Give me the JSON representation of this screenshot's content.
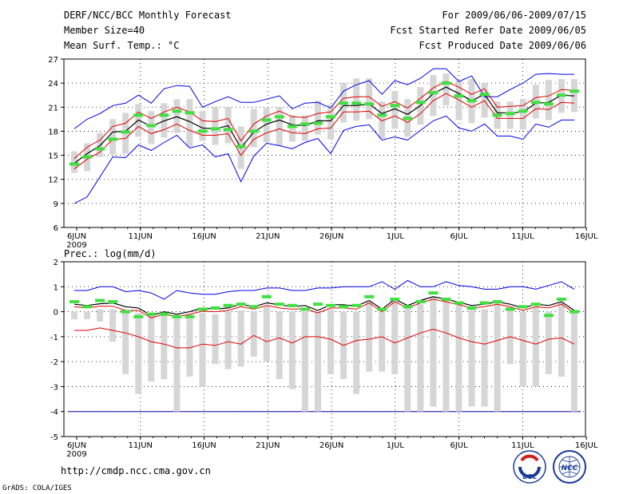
{
  "header": {
    "title": "DERF/NCC/BCC Monthly Forecast",
    "member_size": "Member Size=40",
    "variable": "Mean Surf. Temp.: °C",
    "period": "For 2009/06/06-2009/07/15",
    "started": "Fcst Started Refer Date 2009/06/05",
    "produced": "Fcst Produced Date 2009/06/06"
  },
  "footer": {
    "url": "http://cmdp.ncc.cma.gov.cn",
    "grads": "GrADS: COLA/IGES",
    "logo_bcc": "BCC",
    "logo_ncc": "NCC"
  },
  "colors": {
    "box": "#d6d6d6",
    "mean": "#000000",
    "band": "#e00000",
    "envelope": "#0000ee",
    "median": "#40e040",
    "grid": "#000000",
    "floor": "#0000aa"
  },
  "chart_data": [
    {
      "type": "line",
      "title": "Mean Surf. Temp.: °C",
      "x_tick_labels": [
        "6JUN",
        "11JUN",
        "16JUN",
        "21JUN",
        "26JUN",
        "1JUL",
        "6JUL",
        "11JUL",
        "16JUL"
      ],
      "x_sub_label": "2009",
      "ylim": [
        6,
        27
      ],
      "y_ticks": [
        6,
        9,
        12,
        15,
        18,
        21,
        24,
        27
      ],
      "grid": true,
      "series": {
        "mean": [
          14.0,
          15.2,
          16.2,
          17.9,
          18.0,
          19.4,
          18.6,
          19.3,
          19.8,
          19.2,
          18.4,
          18.3,
          18.7,
          15.9,
          17.9,
          18.9,
          19.4,
          18.8,
          18.7,
          19.3,
          19.3,
          21.2,
          21.2,
          21.4,
          20.2,
          20.8,
          20.1,
          21.2,
          22.7,
          23.5,
          22.7,
          21.8,
          22.6,
          20.3,
          20.3,
          20.4,
          21.5,
          21.6,
          22.5,
          22.4
        ],
        "upper": [
          14.6,
          16.0,
          16.9,
          18.6,
          19.0,
          20.4,
          19.6,
          20.4,
          21.0,
          20.4,
          19.3,
          19.2,
          19.6,
          16.8,
          18.9,
          19.9,
          20.5,
          19.8,
          19.7,
          20.2,
          20.4,
          22.1,
          22.3,
          22.3,
          21.1,
          21.7,
          20.9,
          22.1,
          23.4,
          24.2,
          23.5,
          22.6,
          23.3,
          21.0,
          21.1,
          21.2,
          22.2,
          22.4,
          23.2,
          23.1
        ],
        "lower": [
          13.3,
          14.5,
          15.4,
          17.0,
          17.1,
          18.6,
          17.7,
          18.2,
          18.9,
          18.1,
          17.5,
          17.5,
          17.7,
          15.0,
          17.0,
          17.8,
          18.3,
          17.8,
          17.7,
          18.3,
          18.4,
          20.4,
          20.4,
          20.5,
          19.3,
          19.9,
          19.1,
          20.2,
          21.8,
          22.7,
          21.9,
          21.0,
          21.8,
          19.6,
          19.6,
          19.6,
          20.8,
          20.7,
          21.6,
          21.5
        ],
        "env_max": [
          18.3,
          19.5,
          20.2,
          21.2,
          21.5,
          22.5,
          21.5,
          23.3,
          23.7,
          23.6,
          21.0,
          21.7,
          22.3,
          21.6,
          21.6,
          22.0,
          22.4,
          20.8,
          21.5,
          21.6,
          20.9,
          23.0,
          23.8,
          24.3,
          22.6,
          24.3,
          23.8,
          24.6,
          25.8,
          25.8,
          24.2,
          24.9,
          22.3,
          22.3,
          23.2,
          24.0,
          25.1,
          25.2,
          25.1,
          25.1
        ],
        "env_min": [
          9.0,
          9.8,
          12.3,
          14.8,
          14.7,
          16.3,
          15.6,
          16.6,
          17.5,
          15.9,
          16.3,
          14.8,
          15.2,
          11.7,
          14.9,
          16.5,
          16.2,
          15.8,
          16.6,
          17.1,
          15.2,
          18.1,
          18.6,
          18.8,
          16.9,
          17.3,
          16.9,
          18.1,
          19.3,
          19.9,
          18.4,
          18.0,
          18.9,
          17.4,
          17.4,
          17.0,
          18.9,
          18.5,
          19.4,
          19.4
        ],
        "median": [
          13.9,
          14.8,
          15.8,
          17.0,
          17.9,
          20.0,
          18.7,
          20.0,
          20.5,
          20.3,
          18.0,
          18.3,
          18.2,
          16.1,
          18.0,
          19.4,
          19.8,
          18.6,
          18.9,
          19.0,
          19.8,
          21.5,
          21.5,
          21.4,
          20.0,
          21.2,
          19.6,
          21.6,
          22.8,
          24.0,
          22.4,
          21.8,
          22.6,
          20.0,
          20.2,
          20.5,
          21.6,
          21.4,
          22.5,
          23.0
        ],
        "box_high": [
          15.5,
          16.5,
          17.8,
          19.5,
          20.3,
          21.4,
          20.5,
          21.5,
          22.0,
          22.0,
          20.5,
          21.0,
          21.0,
          18.6,
          20.8,
          20.9,
          21.0,
          20.0,
          20.0,
          21.8,
          21.3,
          24.0,
          24.6,
          24.6,
          21.7,
          23.0,
          22.0,
          23.5,
          25.0,
          25.2,
          24.3,
          24.5,
          24.0,
          21.7,
          21.7,
          22.0,
          23.8,
          24.4,
          24.5,
          24.5
        ],
        "box_low": [
          12.8,
          13.0,
          14.8,
          15.1,
          15.2,
          17.3,
          16.4,
          17.2,
          17.8,
          16.1,
          16.8,
          16.3,
          16.5,
          13.3,
          16.0,
          16.6,
          16.2,
          16.7,
          16.8,
          17.6,
          17.0,
          19.1,
          19.3,
          19.5,
          17.1,
          18.3,
          17.3,
          18.8,
          19.9,
          21.2,
          19.4,
          19.0,
          19.7,
          18.3,
          18.3,
          18.2,
          19.6,
          19.4,
          20.3,
          20.4
        ]
      }
    },
    {
      "type": "line",
      "title": "Prec.: log(mm/d)",
      "x_tick_labels": [
        "6JUN",
        "11JUN",
        "16JUN",
        "21JUN",
        "26JUN",
        "1JUL",
        "6JUL",
        "11JUL",
        "16JUL"
      ],
      "x_sub_label": "2009",
      "ylim": [
        -5,
        2
      ],
      "y_ticks": [
        -5,
        -4,
        -3,
        -2,
        -1,
        0,
        1,
        2
      ],
      "grid": true,
      "floor_line": -4,
      "series": {
        "mean": [
          0.3,
          0.25,
          0.32,
          0.35,
          0.2,
          0.15,
          -0.15,
          0.0,
          -0.1,
          0.0,
          0.15,
          0.1,
          0.15,
          0.3,
          0.2,
          0.35,
          0.28,
          0.2,
          0.25,
          0.05,
          0.28,
          0.28,
          0.22,
          0.45,
          0.1,
          0.5,
          0.25,
          0.45,
          0.6,
          0.5,
          0.38,
          0.25,
          0.3,
          0.4,
          0.3,
          0.15,
          0.3,
          0.25,
          0.4,
          0.05
        ],
        "upper": [
          0.2,
          0.15,
          0.22,
          0.22,
          0.05,
          0.05,
          -0.25,
          -0.1,
          -0.2,
          -0.1,
          0.02,
          0.0,
          0.05,
          0.2,
          0.1,
          0.25,
          0.15,
          0.1,
          0.12,
          -0.05,
          0.15,
          0.15,
          0.1,
          0.35,
          0.0,
          0.4,
          0.15,
          0.35,
          0.5,
          0.4,
          0.28,
          0.15,
          0.2,
          0.3,
          0.2,
          0.05,
          0.2,
          0.15,
          0.3,
          -0.05
        ],
        "band_low": [
          -0.75,
          -0.75,
          -0.65,
          -0.75,
          -0.85,
          -1.0,
          -1.2,
          -1.3,
          -1.45,
          -1.45,
          -1.3,
          -1.35,
          -1.2,
          -1.3,
          -0.95,
          -1.2,
          -1.05,
          -1.25,
          -1.0,
          -1.0,
          -1.1,
          -1.35,
          -1.15,
          -1.1,
          -1.0,
          -1.25,
          -1.05,
          -0.85,
          -0.7,
          -0.85,
          -1.05,
          -1.2,
          -1.3,
          -1.15,
          -1.0,
          -1.15,
          -1.3,
          -1.1,
          -1.05,
          -1.3
        ],
        "env_max": [
          0.85,
          0.85,
          1.0,
          1.0,
          0.8,
          0.85,
          0.75,
          0.5,
          0.85,
          0.75,
          0.7,
          0.7,
          0.8,
          0.85,
          0.85,
          0.95,
          0.95,
          0.85,
          0.85,
          0.95,
          0.95,
          1.0,
          1.0,
          1.0,
          1.2,
          0.9,
          1.25,
          1.0,
          1.0,
          1.2,
          1.05,
          1.0,
          0.9,
          0.9,
          1.0,
          1.0,
          0.9,
          1.05,
          1.2,
          0.9
        ],
        "median": [
          0.4,
          0.2,
          0.45,
          0.4,
          0.0,
          -0.2,
          -0.1,
          -0.1,
          -0.2,
          -0.2,
          0.1,
          0.15,
          0.25,
          0.3,
          0.2,
          0.6,
          0.3,
          0.25,
          0.1,
          0.3,
          0.25,
          0.2,
          0.25,
          0.6,
          0.1,
          0.5,
          0.2,
          0.4,
          0.75,
          0.5,
          0.35,
          0.15,
          0.35,
          0.4,
          0.1,
          0.2,
          0.3,
          -0.15,
          0.5,
          0.0
        ],
        "box_high": [
          0.0,
          0.0,
          0.1,
          0.1,
          0.0,
          -0.05,
          -0.1,
          -0.1,
          -0.1,
          -0.1,
          -0.05,
          -0.1,
          0.0,
          0.05,
          0.0,
          0.2,
          0.0,
          0.0,
          0.0,
          0.0,
          0.1,
          0.0,
          0.0,
          0.4,
          0.1,
          0.5,
          0.2,
          0.3,
          0.6,
          0.5,
          0.4,
          0.15,
          0.1,
          0.4,
          0.2,
          0.0,
          0.2,
          0.0,
          0.4,
          0.0
        ],
        "box_low": [
          -0.3,
          -0.3,
          -0.4,
          -1.2,
          -2.5,
          -3.3,
          -2.8,
          -2.7,
          -4.0,
          -2.6,
          -3.0,
          -2.1,
          -2.3,
          -2.2,
          -1.8,
          -2.0,
          -2.7,
          -3.1,
          -4.0,
          -4.0,
          -2.5,
          -2.7,
          -3.3,
          -2.4,
          -2.4,
          -2.5,
          -4.0,
          -4.0,
          -3.8,
          -4.0,
          -4.0,
          -3.8,
          -3.8,
          -4.0,
          -2.1,
          -3.0,
          -3.0,
          -2.5,
          -2.6,
          -4.0
        ]
      }
    }
  ]
}
